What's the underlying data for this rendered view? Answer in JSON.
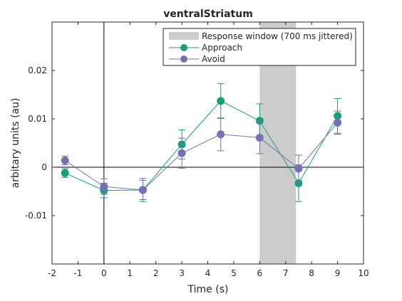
{
  "chart_data": {
    "type": "line",
    "title": "ventralStriatum",
    "xlabel": "Time (s)",
    "ylabel": "arbitary units (au)",
    "xlim": [
      -2,
      10
    ],
    "ylim": [
      -0.02,
      0.03
    ],
    "xticks": [
      -2,
      -1,
      0,
      1,
      2,
      3,
      4,
      5,
      6,
      7,
      8,
      9,
      10
    ],
    "xtick_labels": [
      "-2",
      "-1",
      "0",
      "1",
      "2",
      "3",
      "4",
      "5",
      "6",
      "7",
      "8",
      "9",
      "10"
    ],
    "yticks": [
      -0.01,
      0,
      0.01,
      0.02
    ],
    "ytick_labels": [
      "-0.01",
      "0",
      "0.01",
      "0.02"
    ],
    "grid": false,
    "zero_lines": true,
    "shaded_region": {
      "label": "Response window (700 ms jittered)",
      "x": [
        6,
        7.4
      ],
      "color": "#cccccc"
    },
    "legend_position": "top-right",
    "x": [
      -1.5,
      0,
      1.5,
      3,
      4.5,
      6,
      7.5,
      9
    ],
    "series": [
      {
        "name": "Approach",
        "color": "#1b9e77",
        "values": [
          -0.0012,
          -0.0048,
          -0.0047,
          0.0047,
          0.0137,
          0.0096,
          -0.0033,
          0.0106
        ],
        "errors": [
          0.0009,
          0.0015,
          0.002,
          0.003,
          0.0036,
          0.0035,
          0.0038,
          0.0036
        ]
      },
      {
        "name": "Avoid",
        "color": "#7570b3",
        "values": [
          0.0014,
          -0.004,
          -0.0047,
          0.0029,
          0.0068,
          0.0061,
          -0.0003,
          0.0092
        ],
        "errors": [
          0.0009,
          0.0016,
          0.0024,
          0.0031,
          0.0034,
          0.0033,
          0.0028,
          0.0024
        ]
      }
    ]
  }
}
